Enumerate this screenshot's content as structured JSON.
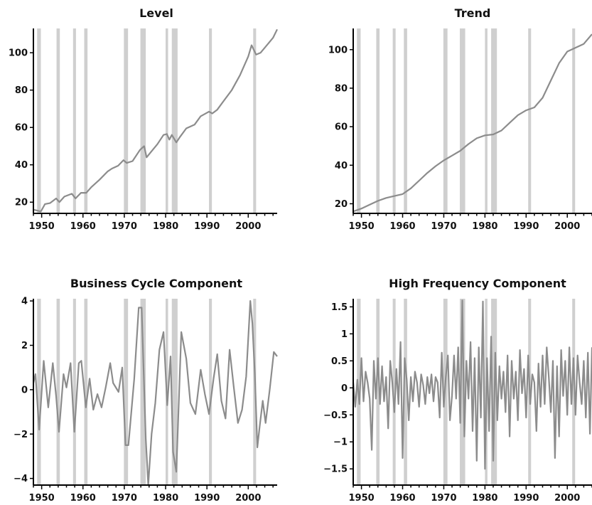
{
  "chart_data": [
    {
      "type": "line",
      "title": "Level",
      "xlim": [
        1948,
        2007
      ],
      "ylim": [
        14,
        113
      ],
      "x_ticks": [
        1950,
        1960,
        1970,
        1980,
        1990,
        2000
      ],
      "y_ticks": [
        20,
        40,
        60,
        80,
        100
      ],
      "y_tick_labels": [
        "20",
        "40",
        "60",
        "80",
        "100"
      ],
      "shaded_periods": [
        [
          1948.9,
          1949.8
        ],
        [
          1953.6,
          1954.4
        ],
        [
          1957.6,
          1958.3
        ],
        [
          1960.3,
          1961.1
        ],
        [
          1969.9,
          1970.9
        ],
        [
          1973.9,
          1975.2
        ],
        [
          1980.0,
          1980.6
        ],
        [
          1981.5,
          1982.9
        ],
        [
          1990.5,
          1991.2
        ],
        [
          2001.2,
          2001.9
        ]
      ],
      "series": [
        {
          "x": [
            1948,
            1949.8,
            1950.8,
            1952,
            1953.5,
            1954.3,
            1955.5,
            1957.3,
            1958.2,
            1959.5,
            1960.8,
            1962,
            1964,
            1966,
            1967,
            1968.5,
            1969.8,
            1970.6,
            1972,
            1973.8,
            1974.8,
            1975.4,
            1976.5,
            1978,
            1979.5,
            1980.3,
            1980.9,
            1981.5,
            1982.6,
            1983.5,
            1985,
            1987,
            1988.5,
            1990.5,
            1991.3,
            1992.5,
            1994,
            1996,
            1998,
            2000,
            2000.8,
            2001.9,
            2003,
            2004.5,
            2006,
            2007
          ],
          "values": [
            16,
            15,
            19,
            19.5,
            22,
            20,
            23,
            24.5,
            22,
            25,
            25,
            28,
            32,
            36.5,
            38,
            39.5,
            42.5,
            41,
            42,
            48,
            50,
            44,
            47,
            51,
            56,
            56.5,
            53.5,
            56,
            52,
            55,
            59.5,
            61.5,
            66,
            68.5,
            67.5,
            69.5,
            74,
            80,
            88,
            98,
            104,
            99,
            100,
            104,
            108,
            112.5
          ]
        }
      ]
    },
    {
      "type": "line",
      "title": "Trend",
      "xlim": [
        1948,
        2006
      ],
      "ylim": [
        15,
        111
      ],
      "x_ticks": [
        1950,
        1960,
        1970,
        1980,
        1990,
        2000
      ],
      "y_ticks": [
        20,
        40,
        60,
        80,
        100
      ],
      "y_tick_labels": [
        "20",
        "40",
        "60",
        "80",
        "100"
      ],
      "shaded_periods": [
        [
          1948.9,
          1949.8
        ],
        [
          1953.6,
          1954.4
        ],
        [
          1957.6,
          1958.3
        ],
        [
          1960.3,
          1961.1
        ],
        [
          1969.9,
          1970.9
        ],
        [
          1973.9,
          1975.2
        ],
        [
          1980.0,
          1980.6
        ],
        [
          1981.5,
          1982.9
        ],
        [
          1990.5,
          1991.2
        ],
        [
          2001.2,
          2001.9
        ]
      ],
      "series": [
        {
          "x": [
            1948,
            1950,
            1952,
            1954,
            1956,
            1958,
            1960,
            1962,
            1964,
            1966,
            1968,
            1970,
            1972,
            1974,
            1976,
            1978,
            1980,
            1982,
            1984,
            1986,
            1988,
            1990,
            1992,
            1994,
            1996,
            1998,
            2000,
            2002,
            2004,
            2006
          ],
          "values": [
            16,
            17.5,
            19.5,
            21.5,
            23,
            24,
            25,
            28,
            32,
            36,
            39.5,
            42.5,
            45,
            47.5,
            51,
            54,
            55.5,
            56,
            58,
            62,
            66,
            68.5,
            70,
            75,
            84,
            93,
            99,
            101,
            103,
            108
          ]
        }
      ]
    },
    {
      "type": "line",
      "title": "Business Cycle Component",
      "xlim": [
        1948,
        2007
      ],
      "ylim": [
        -4.3,
        4.1
      ],
      "x_ticks": [
        1950,
        1960,
        1970,
        1980,
        1990,
        2000
      ],
      "y_ticks": [
        -4,
        -2,
        0,
        2,
        4
      ],
      "y_tick_labels": [
        "−4",
        "−2",
        "0",
        "2",
        "4"
      ],
      "shaded_periods": [
        [
          1948.9,
          1949.8
        ],
        [
          1953.6,
          1954.4
        ],
        [
          1957.6,
          1958.3
        ],
        [
          1960.3,
          1961.1
        ],
        [
          1969.9,
          1970.9
        ],
        [
          1973.9,
          1975.2
        ],
        [
          1980.0,
          1980.6
        ],
        [
          1981.5,
          1982.9
        ],
        [
          1990.5,
          1991.2
        ],
        [
          2001.2,
          2001.9
        ]
      ],
      "series": [
        {
          "x": [
            1948,
            1948.5,
            1949.4,
            1950.5,
            1951.6,
            1952.7,
            1953.5,
            1954.2,
            1955.3,
            1956,
            1957,
            1957.9,
            1959,
            1959.6,
            1960.7,
            1961.6,
            1962.5,
            1963.5,
            1964.5,
            1965.5,
            1966.6,
            1967.3,
            1968.6,
            1969.5,
            1970.3,
            1971.0,
            1972.4,
            1973.5,
            1974.2,
            1975.2,
            1975.8,
            1976.6,
            1977.5,
            1978.5,
            1979.5,
            1980.4,
            1981.2,
            1981.8,
            1982.6,
            1983.8,
            1985,
            1986,
            1987.2,
            1988.5,
            1989.5,
            1990.5,
            1991.6,
            1992.5,
            1993.5,
            1994.5,
            1995.5,
            1996.5,
            1997.5,
            1998.5,
            1999.5,
            2000.5,
            2001.0,
            2001.6,
            2002.2,
            2002.8,
            2003.5,
            2004.2,
            2005.2,
            2006.2,
            2007
          ],
          "values": [
            0.3,
            0.7,
            -1.8,
            1.3,
            -0.8,
            1.2,
            -0.3,
            -1.9,
            0.7,
            0.1,
            1.2,
            -1.9,
            1.2,
            1.3,
            -0.8,
            0.5,
            -0.9,
            -0.2,
            -0.8,
            0.1,
            1.2,
            0.3,
            -0.1,
            1.0,
            -2.5,
            -2.5,
            0.5,
            3.7,
            3.7,
            -2.2,
            -4.4,
            -2.0,
            -0.6,
            1.8,
            2.6,
            -0.7,
            1.5,
            -2.8,
            -3.7,
            2.6,
            1.4,
            -0.6,
            -1.1,
            0.9,
            -0.2,
            -1.1,
            0.5,
            1.6,
            -0.5,
            -1.3,
            1.8,
            0.1,
            -1.5,
            -0.9,
            0.6,
            4.0,
            3.0,
            0.7,
            -2.6,
            -1.6,
            -0.5,
            -1.5,
            0.0,
            1.7,
            1.5
          ]
        }
      ]
    },
    {
      "type": "line",
      "title": "High Frequency Component",
      "xlim": [
        1948,
        2006
      ],
      "ylim": [
        -1.8,
        1.65
      ],
      "x_ticks": [
        1950,
        1960,
        1970,
        1980,
        1990,
        2000
      ],
      "y_ticks": [
        -1.5,
        -1,
        -0.5,
        0,
        0.5,
        1,
        1.5
      ],
      "y_tick_labels": [
        "−1.5",
        "−1",
        "−0.5",
        "0",
        "0.5",
        "1",
        "1.5"
      ],
      "shaded_periods": [
        [
          1948.9,
          1949.8
        ],
        [
          1953.6,
          1954.4
        ],
        [
          1957.6,
          1958.3
        ],
        [
          1960.3,
          1961.1
        ],
        [
          1969.9,
          1970.9
        ],
        [
          1973.9,
          1975.2
        ],
        [
          1980.0,
          1980.6
        ],
        [
          1981.5,
          1982.9
        ],
        [
          1990.5,
          1991.2
        ],
        [
          2001.2,
          2001.9
        ]
      ],
      "series": [
        {
          "x": [
            1948,
            1948.5,
            1949,
            1949.5,
            1950,
            1950.5,
            1951,
            1951.5,
            1952,
            1952.5,
            1953,
            1953.5,
            1954,
            1954.5,
            1955,
            1955.5,
            1956,
            1956.5,
            1957,
            1957.5,
            1958,
            1958.5,
            1959,
            1959.5,
            1960,
            1960.5,
            1961,
            1961.5,
            1962,
            1962.5,
            1963,
            1963.5,
            1964,
            1964.5,
            1965,
            1965.5,
            1966,
            1966.5,
            1967,
            1967.5,
            1968,
            1968.5,
            1969,
            1969.5,
            1970,
            1970.5,
            1971,
            1971.5,
            1972,
            1972.5,
            1973,
            1973.5,
            1974,
            1974.5,
            1975,
            1975.5,
            1976,
            1976.5,
            1977,
            1977.5,
            1978,
            1978.5,
            1979,
            1979.5,
            1980,
            1980.5,
            1981,
            1981.5,
            1982,
            1982.5,
            1983,
            1983.5,
            1984,
            1984.5,
            1985,
            1985.5,
            1986,
            1986.5,
            1987,
            1987.5,
            1988,
            1988.5,
            1989,
            1989.5,
            1990,
            1990.5,
            1991,
            1991.5,
            1992,
            1992.5,
            1993,
            1993.5,
            1994,
            1994.5,
            1995,
            1995.5,
            1996,
            1996.5,
            1997,
            1997.5,
            1998,
            1998.5,
            1999,
            1999.5,
            2000,
            2000.5,
            2001,
            2001.5,
            2002,
            2002.5,
            2003,
            2003.5,
            2004,
            2004.5,
            2005,
            2005.5,
            2006
          ],
          "values": [
            0.1,
            -0.35,
            0.15,
            -0.3,
            0.55,
            -0.25,
            0.3,
            0.1,
            -0.2,
            -1.15,
            0.5,
            -0.2,
            0.55,
            -0.3,
            0.4,
            -0.25,
            0.2,
            -0.75,
            0.5,
            0.1,
            -0.45,
            0.35,
            -0.3,
            0.85,
            -1.3,
            0.55,
            0.15,
            -0.6,
            0.2,
            -0.25,
            0.3,
            0.1,
            -0.35,
            0.25,
            0.05,
            -0.3,
            0.2,
            -0.1,
            0.25,
            -0.25,
            0.2,
            0.1,
            -0.55,
            0.65,
            -0.35,
            0.2,
            0.6,
            -0.6,
            -0.15,
            0.6,
            -0.2,
            0.75,
            -0.65,
            1.62,
            -0.9,
            0.5,
            -0.2,
            0.85,
            -0.8,
            0.55,
            -1.35,
            0.75,
            -0.55,
            1.6,
            -1.5,
            0.55,
            -0.8,
            0.95,
            -1.35,
            0.65,
            -0.6,
            0.4,
            -0.2,
            0.3,
            -0.45,
            0.6,
            -0.9,
            0.5,
            -0.2,
            0.3,
            -0.6,
            0.7,
            -0.1,
            0.35,
            -0.55,
            0.6,
            -0.3,
            0.25,
            0.1,
            -0.8,
            0.45,
            -0.35,
            0.6,
            -0.3,
            0.75,
            0.2,
            -0.45,
            0.5,
            -1.3,
            0.4,
            -0.9,
            0.7,
            -0.15,
            0.5,
            -0.5,
            0.75,
            -0.3,
            0.55,
            -0.5,
            0.6,
            0.1,
            -0.3,
            0.5,
            -0.55,
            0.65,
            -0.85,
            0.75
          ]
        }
      ]
    }
  ]
}
